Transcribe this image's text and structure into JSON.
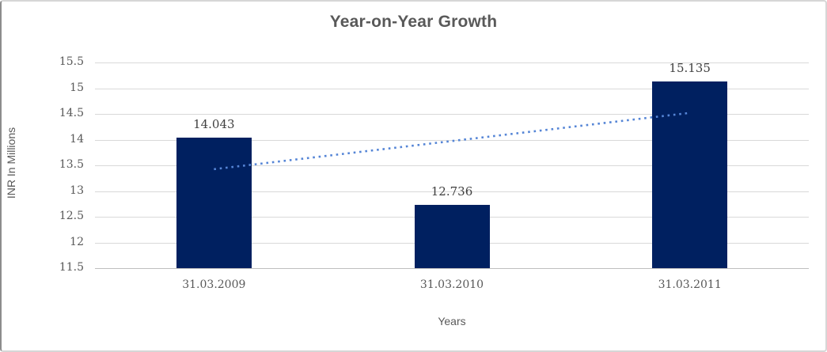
{
  "chart_data": {
    "type": "bar",
    "title": "Year-on-Year Growth",
    "xlabel": "Years",
    "ylabel": "INR In Millions",
    "categories": [
      "31.03.2009",
      "31.03.2010",
      "31.03.2011"
    ],
    "values": [
      14.043,
      12.736,
      15.135
    ],
    "data_labels": [
      "14.043",
      "12.736",
      "15.135"
    ],
    "yticks": [
      15.5,
      15,
      14.5,
      14,
      13.5,
      13,
      12.5,
      12,
      11.5
    ],
    "ytick_labels": [
      "15.5",
      "15",
      "14.5",
      "14",
      "13.5",
      "13",
      "12.5",
      "12",
      "11.5"
    ],
    "ylim": [
      11.5,
      15.5
    ],
    "grid": true,
    "legend": false,
    "trendline": {
      "type": "linear",
      "style": "dotted",
      "start_value": 13.425,
      "end_value": 14.52,
      "color": "#5585d6"
    },
    "colors": {
      "bar": "#002060",
      "title_text": "#595959",
      "tick_text": "#595959",
      "axis_title_text": "#595959",
      "data_label_text": "#3f3f3f",
      "gridline": "#d9d9d9",
      "axis_line": "#bfbfbf",
      "background": "#ffffff"
    }
  }
}
